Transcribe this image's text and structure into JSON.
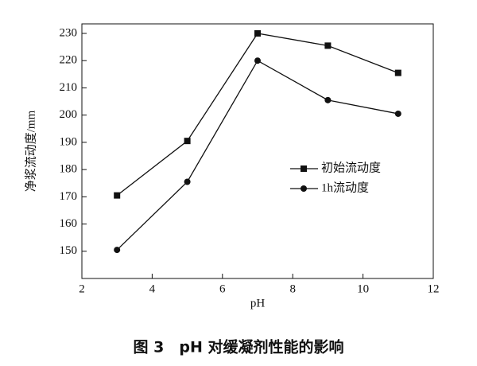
{
  "chart_data": {
    "type": "line",
    "caption": "图 3　pH 对缓凝剂性能的影响",
    "x_label": "pH",
    "y_label": "净浆流动度/mm",
    "x": [
      3,
      5,
      7,
      9,
      11
    ],
    "series": [
      {
        "name": "初始流动度",
        "color": "#111111",
        "marker": "square",
        "values": [
          170.5,
          190.5,
          230,
          225.5,
          215.5
        ]
      },
      {
        "name": "1h流动度",
        "color": "#111111",
        "marker": "circle",
        "values": [
          150.5,
          175.5,
          220,
          205.5,
          200.5
        ]
      }
    ],
    "xlim": [
      2,
      12
    ],
    "xticks": [
      2,
      4,
      6,
      8,
      10,
      12
    ],
    "ylim": [
      140,
      233.5
    ],
    "yticks": [
      150,
      160,
      170,
      180,
      190,
      200,
      210,
      220,
      230
    ],
    "grid": false
  }
}
